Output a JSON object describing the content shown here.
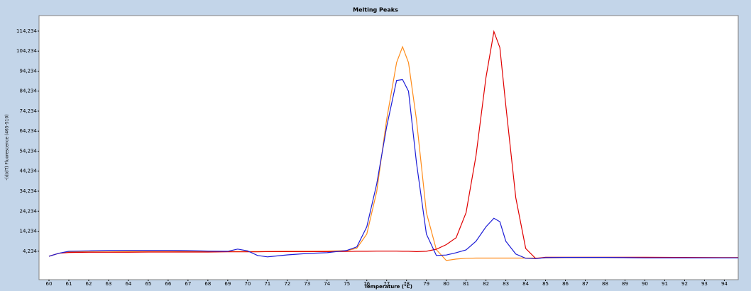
{
  "chart_data": {
    "type": "line",
    "title": "Melting Peaks",
    "xlabel": "Temperature (°C)",
    "ylabel": "-(d/dT) Fluorescence (465-510)",
    "x": [
      60,
      60.5,
      61,
      62,
      63,
      64,
      65,
      66,
      67,
      68,
      69,
      69.5,
      70,
      70.5,
      71,
      72,
      73,
      74,
      75,
      75.5,
      76,
      76.5,
      77,
      77.5,
      77.8,
      78.1,
      78.5,
      79,
      79.5,
      80,
      80.5,
      81,
      81.5,
      82,
      82.4,
      82.7,
      83,
      83.5,
      84,
      84.5,
      85,
      86,
      88,
      90,
      92,
      94,
      94.7
    ],
    "series": [
      {
        "color": "#ff8c1a",
        "values": [
          1.7,
          3.2,
          3.9,
          3.9,
          3.9,
          4,
          4,
          4,
          4,
          4,
          4.1,
          4.1,
          4.1,
          4.1,
          4.1,
          4.2,
          4.2,
          4.3,
          4.5,
          5.7,
          12.8,
          34,
          70,
          98.5,
          106.4,
          98.5,
          70,
          23.5,
          5,
          -0.4,
          0.3,
          0.7,
          0.8,
          0.8,
          0.8,
          0.8,
          0.8,
          0.8,
          0.8,
          0.8,
          0.9,
          1,
          1,
          1,
          1,
          1,
          1
        ]
      },
      {
        "color": "#e00000",
        "values": [
          1.7,
          3.2,
          3.6,
          3.7,
          3.7,
          3.7,
          3.8,
          3.8,
          3.8,
          3.8,
          3.9,
          3.9,
          3.9,
          3.9,
          4,
          4,
          4,
          4,
          4.1,
          4.2,
          4.2,
          4.3,
          4.3,
          4.3,
          4.2,
          4.2,
          4,
          4.2,
          5.2,
          7.5,
          11,
          23.5,
          52,
          91,
          114,
          106,
          77,
          31,
          5.6,
          0.6,
          1.2,
          1.2,
          1.2,
          1.2,
          1.1,
          1,
          1
        ]
      },
      {
        "color": "#1c1cd6",
        "values": [
          1.7,
          3.2,
          4.2,
          4.4,
          4.6,
          4.6,
          4.6,
          4.6,
          4.5,
          4.3,
          4.2,
          5.3,
          4.4,
          2.1,
          1.4,
          2.4,
          3.1,
          3.5,
          4.6,
          6.4,
          16.4,
          37.8,
          66.4,
          89.6,
          90,
          84.2,
          48.5,
          12.8,
          2.1,
          2.3,
          3.5,
          4.9,
          9.2,
          16.4,
          20.7,
          19,
          9.2,
          2.8,
          0.7,
          0.5,
          1,
          1.1,
          1.1,
          0.9,
          0.9,
          0.9,
          0.9
        ]
      }
    ],
    "xlim": [
      59.5,
      94.7
    ],
    "ylim": [
      -10,
      122
    ],
    "xticks": [
      60,
      61,
      62,
      63,
      64,
      65,
      66,
      67,
      68,
      69,
      70,
      71,
      72,
      73,
      74,
      75,
      76,
      77,
      78,
      79,
      80,
      81,
      82,
      83,
      84,
      85,
      86,
      87,
      88,
      89,
      90,
      91,
      92,
      93,
      94
    ],
    "yticks": [
      {
        "value": 4.234,
        "label": "4,234"
      },
      {
        "value": 14.234,
        "label": "14,234"
      },
      {
        "value": 24.234,
        "label": "24,234"
      },
      {
        "value": 34.234,
        "label": "34,234"
      },
      {
        "value": 44.234,
        "label": "44,234"
      },
      {
        "value": 54.234,
        "label": "54,234"
      },
      {
        "value": 64.234,
        "label": "64,234"
      },
      {
        "value": 74.234,
        "label": "74,234"
      },
      {
        "value": 84.234,
        "label": "84,234"
      },
      {
        "value": 94.234,
        "label": "94,234"
      },
      {
        "value": 104.234,
        "label": "104,234"
      },
      {
        "value": 114.234,
        "label": "114,234"
      }
    ],
    "grid": false
  }
}
